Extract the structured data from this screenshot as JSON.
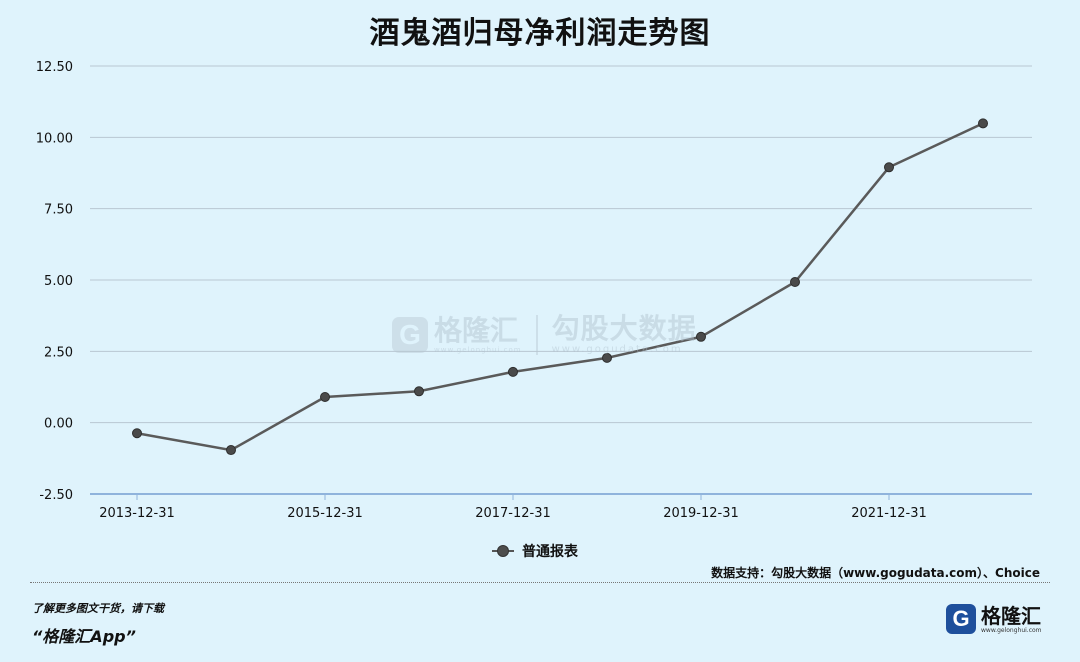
{
  "title": "酒鬼酒归母净利润走势图",
  "chart_data": {
    "type": "line",
    "title": "酒鬼酒归母净利润走势图",
    "categories": [
      "2013-12-31",
      "2014-12-31",
      "2015-12-31",
      "2016-12-31",
      "2017-12-31",
      "2018-12-31",
      "2019-12-31",
      "2020-12-31",
      "2021-12-31",
      "2022-12-31"
    ],
    "tick_labels": [
      "2013-12-31",
      "2015-12-31",
      "2017-12-31",
      "2019-12-31",
      "2021-12-31"
    ],
    "yticks": [
      "12.50",
      "10.00",
      "7.50",
      "5.00",
      "2.50",
      "0.00",
      "-2.50"
    ],
    "ylim": [
      -2.5,
      12.5
    ],
    "grid": true,
    "legend_position": "bottom-center",
    "series": [
      {
        "name": "普通报表",
        "values": [
          -0.37,
          -0.96,
          0.9,
          1.1,
          1.78,
          2.27,
          3.01,
          4.93,
          8.95,
          10.49
        ]
      }
    ]
  },
  "legend": {
    "label": "普通报表"
  },
  "source": "数据支持：勾股大数据（www.gogudata.com）、Choice",
  "watermark": {
    "brand": "格隆汇",
    "brand_url": "www.gelonghui.com",
    "data_brand": "勾股大数据",
    "data_url": "www.gogudata.com"
  },
  "footer": {
    "promo_line": "了解更多图文干货，请下载",
    "app_name": "“格隆汇App”",
    "logo_text": "格隆汇",
    "logo_url": "www.gelonghui.com",
    "logo_letter": "G"
  },
  "colors": {
    "background": "#dff3fc",
    "line": "#5a5a5a",
    "grid": "#b8c7d2",
    "axis": "#8fb3dc"
  }
}
